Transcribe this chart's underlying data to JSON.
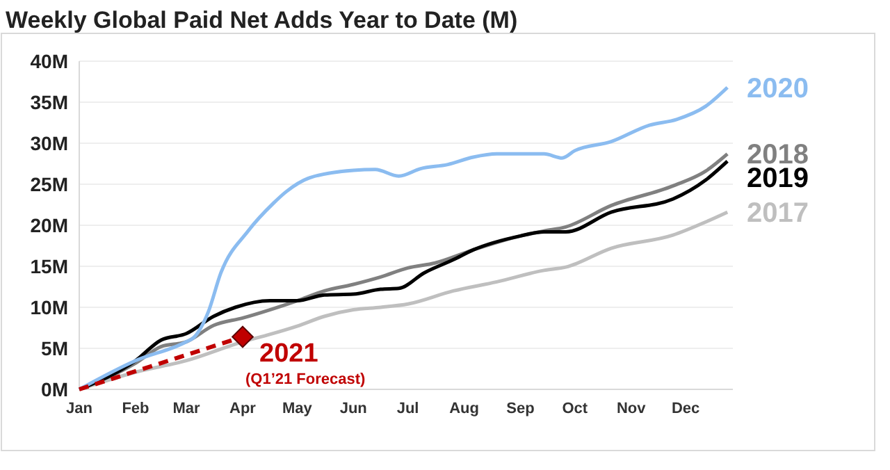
{
  "chart_data": {
    "type": "line",
    "title": "Weekly Global Paid Net Adds Year to Date (M)",
    "xlim": [
      "--01-01",
      "--12-27"
    ],
    "xticks": [
      {
        "value": "--01-01",
        "label": "Jan"
      },
      {
        "value": "--02-01",
        "label": "Feb"
      },
      {
        "value": "--03-01",
        "label": "Mar"
      },
      {
        "value": "--04-01",
        "label": "Apr"
      },
      {
        "value": "--05-01",
        "label": "May"
      },
      {
        "value": "--06-01",
        "label": "Jun"
      },
      {
        "value": "--07-01",
        "label": "Jul"
      },
      {
        "value": "--08-01",
        "label": "Aug"
      },
      {
        "value": "--09-01",
        "label": "Sep"
      },
      {
        "value": "--10-01",
        "label": "Oct"
      },
      {
        "value": "--11-01",
        "label": "Nov"
      },
      {
        "value": "--12-01",
        "label": "Dec"
      }
    ],
    "ylim": [
      0,
      40
    ],
    "yticks": [
      {
        "value": 0,
        "label": "0M"
      },
      {
        "value": 5,
        "label": "5M"
      },
      {
        "value": 10,
        "label": "10M"
      },
      {
        "value": 15,
        "label": "15M"
      },
      {
        "value": 20,
        "label": "20M"
      },
      {
        "value": 25,
        "label": "25M"
      },
      {
        "value": 30,
        "label": "30M"
      },
      {
        "value": 35,
        "label": "35M"
      },
      {
        "value": 40,
        "label": "40M"
      }
    ],
    "grid": "y",
    "marker": "none",
    "line_style": "solid",
    "series": [
      {
        "name": "2017",
        "color": "#bfbfbf",
        "x": [
          "--01-01",
          "--02-01",
          "--03-01",
          "--04-01",
          "--04-16",
          "--05-01",
          "--05-16",
          "--06-01",
          "--06-16",
          "--07-01",
          "--07-26",
          "--08-19",
          "--09-14",
          "--09-26",
          "--10-21",
          "--11-24",
          "--12-12",
          "--12-24"
        ],
        "values": [
          0,
          2.1,
          3.5,
          5.8,
          6.7,
          7.7,
          8.9,
          9.7,
          10,
          10.4,
          12,
          13.1,
          14.5,
          14.9,
          17.2,
          18.8,
          20.4,
          21.6
        ]
      },
      {
        "name": "2018",
        "color": "#808080",
        "x": [
          "--01-01",
          "--02-01",
          "--02-15",
          "--03-01",
          "--03-16",
          "--04-01",
          "--04-16",
          "--05-01",
          "--05-16",
          "--06-01",
          "--06-16",
          "--07-01",
          "--07-16",
          "--08-06",
          "--09-01",
          "--09-14",
          "--09-26",
          "--10-21",
          "--11-24",
          "--12-12",
          "--12-24"
        ],
        "values": [
          0,
          3.2,
          5.2,
          5.8,
          7.8,
          8.7,
          9.7,
          10.8,
          12,
          12.8,
          13.7,
          14.8,
          15.4,
          17,
          18.7,
          19.3,
          19.8,
          22.4,
          24.8,
          26.6,
          28.7
        ]
      },
      {
        "name": "2019",
        "color": "#000000",
        "x": [
          "--01-01",
          "--02-01",
          "--02-15",
          "--03-01",
          "--03-16",
          "--03-28",
          "--04-16",
          "--05-01",
          "--05-16",
          "--06-01",
          "--06-16",
          "--06-26",
          "--07-10",
          "--07-26",
          "--08-06",
          "--09-01",
          "--09-14",
          "--09-26",
          "--10-21",
          "--11-24",
          "--12-12",
          "--12-24"
        ],
        "values": [
          0,
          3.5,
          6,
          6.8,
          8.9,
          10,
          10.8,
          10.8,
          11.5,
          11.6,
          12.2,
          12.3,
          14.2,
          15.8,
          17,
          18.7,
          19.2,
          19.2,
          21.6,
          23.2,
          25.5,
          27.8
        ]
      },
      {
        "name": "2020",
        "color": "#8bbcf0",
        "x": [
          "--01-01",
          "--02-01",
          "--03-01",
          "--03-05",
          "--03-13",
          "--03-20",
          "--04-04",
          "--04-18",
          "--04-25",
          "--05-08",
          "--06-01",
          "--06-13",
          "--06-26",
          "--07-08",
          "--07-23",
          "--08-06",
          "--08-19",
          "--09-14",
          "--09-24",
          "--10-01",
          "--10-21",
          "--11-11",
          "--11-26",
          "--12-12",
          "--12-24"
        ],
        "values": [
          0,
          3.5,
          5.8,
          6.3,
          9.4,
          14.2,
          19.3,
          22.7,
          24.1,
          25.8,
          26.7,
          26.8,
          26,
          26.9,
          27.4,
          28.3,
          28.7,
          28.7,
          28.2,
          29.1,
          30.2,
          32.2,
          32.9,
          34.5,
          36.8
        ]
      },
      {
        "name": "2021",
        "color": "#c00000",
        "line_style": "dashed",
        "x": [
          "--01-01",
          "--04-01"
        ],
        "values": [
          0,
          6.4
        ]
      },
      {
        "type": "scatter",
        "color": "#c00000",
        "marker": "diamond",
        "x": [
          "--04-01"
        ],
        "values": [
          6.4
        ]
      }
    ],
    "annotations": [
      "(Q1’21 Forecast)"
    ]
  }
}
